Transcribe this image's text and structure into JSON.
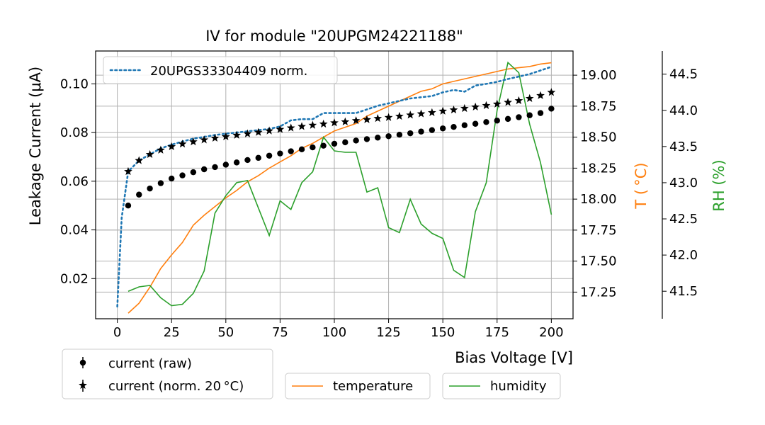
{
  "chart_data": {
    "type": "line",
    "title": "IV for module \"20UPGM24221188\"",
    "xlabel": "Bias Voltage [V]",
    "ylabel": "Leakage Current (μA)",
    "y2label": "T ( °C)",
    "y3label": "RH (%)",
    "xlim": [
      -10,
      210
    ],
    "ylim": [
      0.0035,
      0.1135
    ],
    "y2lim": [
      17.035,
      19.195
    ],
    "y3lim": [
      41.12,
      44.82
    ],
    "xticks": [
      0,
      25,
      50,
      75,
      100,
      125,
      150,
      175,
      200
    ],
    "yticks": [
      0.02,
      0.04,
      0.06,
      0.08,
      0.1
    ],
    "y2ticks": [
      17.25,
      17.5,
      17.75,
      18.0,
      18.25,
      18.5,
      18.75,
      19.0
    ],
    "y3ticks": [
      41.5,
      42.0,
      42.5,
      43.0,
      43.5,
      44.0,
      44.5
    ],
    "ytick_labels": [
      "0.02",
      "0.04",
      "0.06",
      "0.08",
      "0.10"
    ],
    "y2tick_labels": [
      "17.25",
      "17.50",
      "17.75",
      "18.00",
      "18.25",
      "18.50",
      "18.75",
      "19.00"
    ],
    "y3tick_labels": [
      "41.5",
      "42.0",
      "42.5",
      "43.0",
      "43.5",
      "44.0",
      "44.5"
    ],
    "grid": true,
    "colors": {
      "reference": "#1f77b4",
      "temperature": "#ff7f0e",
      "humidity": "#2ca02c",
      "current": "#000000"
    },
    "series": [
      {
        "name": "20UPGS33304409 norm.",
        "axis": "left",
        "style": "dotted",
        "x": [
          0,
          2,
          5,
          10,
          15,
          20,
          25,
          30,
          35,
          40,
          45,
          50,
          55,
          60,
          65,
          70,
          75,
          80,
          85,
          90,
          95,
          100,
          105,
          110,
          115,
          120,
          125,
          130,
          135,
          140,
          145,
          150,
          155,
          160,
          165,
          170,
          175,
          180,
          185,
          190,
          195,
          200
        ],
        "values": [
          0.0085,
          0.045,
          0.064,
          0.0685,
          0.071,
          0.0735,
          0.075,
          0.0763,
          0.0775,
          0.0782,
          0.079,
          0.0795,
          0.08,
          0.0805,
          0.081,
          0.0815,
          0.0825,
          0.085,
          0.0855,
          0.0855,
          0.088,
          0.088,
          0.088,
          0.088,
          0.0895,
          0.091,
          0.092,
          0.093,
          0.094,
          0.0945,
          0.095,
          0.0965,
          0.0975,
          0.0968,
          0.0993,
          0.1,
          0.1008,
          0.102,
          0.103,
          0.104,
          0.1055,
          0.107
        ]
      },
      {
        "name": "temperature",
        "axis": "right",
        "style": "solid",
        "x": [
          5,
          10,
          15,
          20,
          25,
          30,
          35,
          40,
          45,
          50,
          55,
          60,
          65,
          70,
          75,
          80,
          85,
          90,
          95,
          100,
          105,
          110,
          115,
          120,
          125,
          130,
          135,
          140,
          145,
          150,
          155,
          160,
          165,
          170,
          175,
          180,
          185,
          190,
          195,
          200
        ],
        "values": [
          17.08,
          17.16,
          17.29,
          17.44,
          17.55,
          17.65,
          17.79,
          17.87,
          17.94,
          18.01,
          18.07,
          18.14,
          18.19,
          18.25,
          18.3,
          18.35,
          18.41,
          18.45,
          18.5,
          18.55,
          18.58,
          18.61,
          18.67,
          18.71,
          18.75,
          18.79,
          18.83,
          18.87,
          18.89,
          18.93,
          18.95,
          18.97,
          18.99,
          19.01,
          19.03,
          19.05,
          19.06,
          19.07,
          19.09,
          19.1
        ]
      },
      {
        "name": "humidity",
        "axis": "rh",
        "style": "solid",
        "x": [
          5,
          10,
          15,
          20,
          25,
          30,
          35,
          40,
          45,
          50,
          55,
          60,
          65,
          70,
          75,
          80,
          85,
          90,
          95,
          100,
          105,
          110,
          115,
          120,
          125,
          130,
          135,
          140,
          145,
          150,
          155,
          160,
          165,
          170,
          175,
          180,
          185,
          190,
          195,
          200
        ],
        "values": [
          41.5,
          41.56,
          41.58,
          41.41,
          41.3,
          41.32,
          41.47,
          41.78,
          42.58,
          42.82,
          43.0,
          43.03,
          42.65,
          42.27,
          42.75,
          42.63,
          43.0,
          43.15,
          43.63,
          43.44,
          43.42,
          43.42,
          42.87,
          42.93,
          42.38,
          42.31,
          42.77,
          42.43,
          42.3,
          42.23,
          41.79,
          41.69,
          42.6,
          43.0,
          44.0,
          44.66,
          44.52,
          43.81,
          43.28,
          42.56
        ]
      },
      {
        "name": "current (raw)",
        "axis": "left",
        "style": "markers-dot",
        "x": [
          5,
          10,
          15,
          20,
          25,
          30,
          35,
          40,
          45,
          50,
          55,
          60,
          65,
          70,
          75,
          80,
          85,
          90,
          95,
          100,
          105,
          110,
          115,
          120,
          125,
          130,
          135,
          140,
          145,
          150,
          155,
          160,
          165,
          170,
          175,
          180,
          185,
          190,
          195,
          200
        ],
        "values": [
          0.05,
          0.0545,
          0.057,
          0.0592,
          0.0611,
          0.0624,
          0.0637,
          0.0649,
          0.0658,
          0.0668,
          0.0677,
          0.0687,
          0.0696,
          0.0705,
          0.0714,
          0.0723,
          0.0731,
          0.0739,
          0.0746,
          0.0754,
          0.076,
          0.0767,
          0.0773,
          0.0779,
          0.0785,
          0.0791,
          0.0797,
          0.0804,
          0.081,
          0.0817,
          0.0823,
          0.083,
          0.0836,
          0.0843,
          0.0849,
          0.0856,
          0.0863,
          0.0871,
          0.088,
          0.0898
        ]
      },
      {
        "name": "current (norm. 20 °C)",
        "axis": "left",
        "style": "markers-star",
        "x": [
          5,
          10,
          15,
          20,
          25,
          30,
          35,
          40,
          45,
          50,
          55,
          60,
          65,
          70,
          75,
          80,
          85,
          90,
          95,
          100,
          105,
          110,
          115,
          120,
          125,
          130,
          135,
          140,
          145,
          150,
          155,
          160,
          165,
          170,
          175,
          180,
          185,
          190,
          195,
          200
        ],
        "values": [
          0.064,
          0.0685,
          0.071,
          0.0728,
          0.0742,
          0.0753,
          0.0762,
          0.077,
          0.0777,
          0.0783,
          0.0789,
          0.0795,
          0.0801,
          0.0807,
          0.0813,
          0.0819,
          0.0825,
          0.083,
          0.0835,
          0.084,
          0.0844,
          0.0849,
          0.0853,
          0.0858,
          0.0862,
          0.0867,
          0.0872,
          0.0877,
          0.0882,
          0.0888,
          0.0893,
          0.0899,
          0.0905,
          0.0911,
          0.0917,
          0.0924,
          0.0931,
          0.094,
          0.0952,
          0.0965
        ]
      }
    ],
    "legends": {
      "top_left": [
        "20UPGS33304409 norm."
      ],
      "bottom_left": [
        "current (raw)",
        "current (norm. 20 °C)"
      ],
      "bottom_center": [
        "temperature"
      ],
      "bottom_right": [
        "humidity"
      ]
    }
  }
}
